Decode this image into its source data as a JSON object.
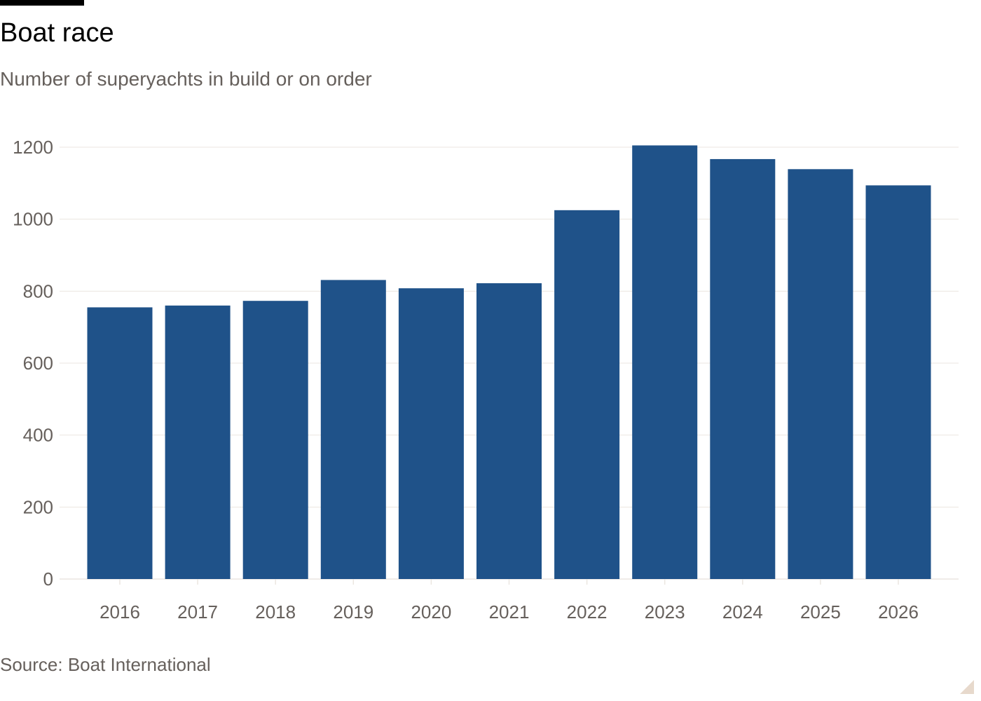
{
  "header": {
    "title": "Boat race",
    "subtitle": "Number of superyachts in build or on order"
  },
  "footer": {
    "source": "Source: Boat International"
  },
  "colors": {
    "bar": "#1f5289",
    "gridline": "#ebe6e0",
    "text_muted": "#66605c",
    "top_bar": "#000000"
  },
  "chart_data": {
    "type": "bar",
    "title": "Boat race",
    "subtitle": "Number of superyachts in build or on order",
    "xlabel": "",
    "ylabel": "",
    "categories": [
      "2016",
      "2017",
      "2018",
      "2019",
      "2020",
      "2021",
      "2022",
      "2023",
      "2024",
      "2025",
      "2026"
    ],
    "values": [
      755,
      760,
      773,
      831,
      808,
      822,
      1025,
      1205,
      1167,
      1139,
      1094
    ],
    "ylim": [
      0,
      1200
    ],
    "yticks": [
      0,
      200,
      400,
      600,
      800,
      1000,
      1200
    ],
    "grid": true,
    "legend": "none"
  }
}
